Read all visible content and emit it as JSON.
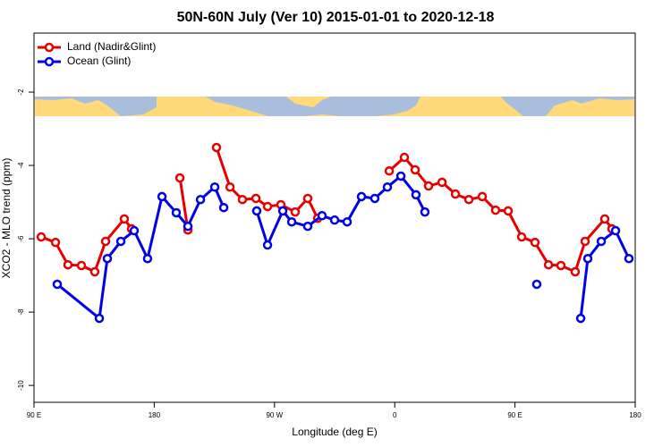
{
  "chart_data": {
    "type": "line",
    "title": "50N-60N July (Ver 10)   2015-01-01 to 2020-12-18",
    "x_label": "Longitude (deg E)",
    "y_label": "XCO2 - MLO trend (ppm)",
    "xlim": [
      90,
      540
    ],
    "ylim": [
      -10.46,
      -0.39
    ],
    "xticks": [
      {
        "value": 90,
        "label": "90 E"
      },
      {
        "value": 180,
        "label": "180"
      },
      {
        "value": 270,
        "label": "90 W"
      },
      {
        "value": 360,
        "label": "0"
      },
      {
        "value": 450,
        "label": "90 E"
      },
      {
        "value": 540,
        "label": "180"
      }
    ],
    "yticks": [
      -2,
      -4,
      -6,
      -8,
      -10
    ],
    "legend": "upper left",
    "series": [
      {
        "name": "Land (Nadir&Glint)",
        "color": "#e60000",
        "x": [
          95.4,
          106.1,
          115.4,
          125.5,
          135.5,
          143.6,
          157.6,
          163.0,
          null,
          199.2,
          205.2,
          null,
          226.6,
          236.7,
          246.0,
          256.1,
          264.8,
          274.8,
          285.5,
          294.9,
          302.3,
          null,
          355.9,
          367.2,
          375.3,
          385.3,
          395.4,
          405.4,
          415.5,
          425.5,
          435.5,
          444.9,
          455.0,
          465.0,
          475.1,
          484.4,
          495.1,
          502.5,
          517.2,
          522.6
        ],
        "values": [
          -5.95,
          -6.1,
          -6.71,
          -6.73,
          -6.9,
          -6.07,
          -5.46,
          -5.73,
          null,
          -4.34,
          -5.76,
          null,
          -3.51,
          -4.59,
          -4.93,
          -4.9,
          -5.12,
          -5.07,
          -5.27,
          -4.9,
          -5.44,
          null,
          -4.15,
          -3.78,
          -4.12,
          -4.56,
          -4.46,
          -4.78,
          -4.93,
          -4.85,
          -5.22,
          -5.24,
          -5.95,
          -6.1,
          -6.71,
          -6.73,
          -6.9,
          -6.07,
          -5.46,
          -5.73
        ]
      },
      {
        "name": "Ocean (Glint)",
        "color": "#0000e6",
        "x": [
          107.4,
          138.9,
          144.9,
          155.0,
          165.0,
          175.0,
          185.8,
          196.5,
          205.2,
          214.6,
          225.3,
          232.0,
          null,
          256.7,
          264.8,
          276.2,
          282.9,
          294.9,
          305.6,
          315.0,
          324.4,
          335.1,
          345.1,
          354.5,
          364.6,
          375.9,
          382.6,
          null,
          466.3,
          null,
          499.2,
          504.5,
          514.6,
          525.3,
          535.3
        ],
        "values": [
          -7.24,
          -8.17,
          -6.54,
          -6.07,
          -5.78,
          -6.54,
          -4.85,
          -5.29,
          -5.66,
          -4.93,
          -4.59,
          -5.15,
          null,
          -5.24,
          -6.17,
          -5.24,
          -5.54,
          -5.66,
          -5.37,
          -5.49,
          -5.54,
          -4.85,
          -4.9,
          -4.59,
          -4.29,
          -4.8,
          -5.27,
          null,
          -7.24,
          null,
          -8.17,
          -6.54,
          -6.07,
          -5.78,
          -6.54
        ]
      }
    ]
  }
}
